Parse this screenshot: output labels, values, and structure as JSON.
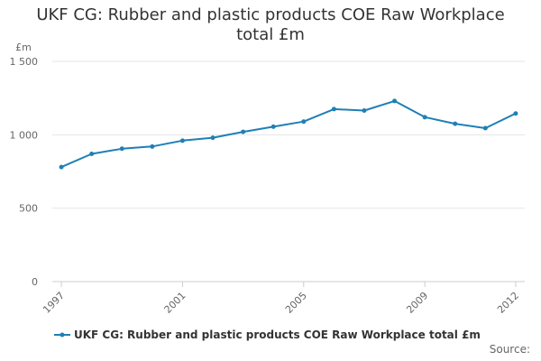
{
  "chart_data": {
    "type": "line",
    "title_line1": "UKF CG: Rubber and plastic products COE Raw Workplace",
    "title_line2": "total £m",
    "ylabel": "£m",
    "xlabel": "",
    "x": [
      1997,
      1998,
      1999,
      2000,
      2001,
      2002,
      2003,
      2004,
      2005,
      2006,
      2007,
      2008,
      2009,
      2010,
      2011,
      2012
    ],
    "x_tick_labels": [
      "1997",
      "2001",
      "2005",
      "2009",
      "2012"
    ],
    "x_tick_values": [
      1997,
      2001,
      2005,
      2009,
      2012
    ],
    "y_tick_labels": [
      "0",
      "500",
      "1 000",
      "1 500"
    ],
    "y_tick_values": [
      0,
      500,
      1000,
      1500
    ],
    "ylim": [
      0,
      1500
    ],
    "grid": true,
    "legend_position": "bottom",
    "series": [
      {
        "name": "UKF CG: Rubber and plastic products COE Raw Workplace total £m",
        "color": "#1f7fb6",
        "values": [
          780,
          870,
          905,
          920,
          960,
          980,
          1020,
          1055,
          1090,
          1175,
          1165,
          1230,
          1120,
          1075,
          1045,
          1145
        ]
      }
    ]
  },
  "footer": {
    "source_label": "Source:"
  }
}
